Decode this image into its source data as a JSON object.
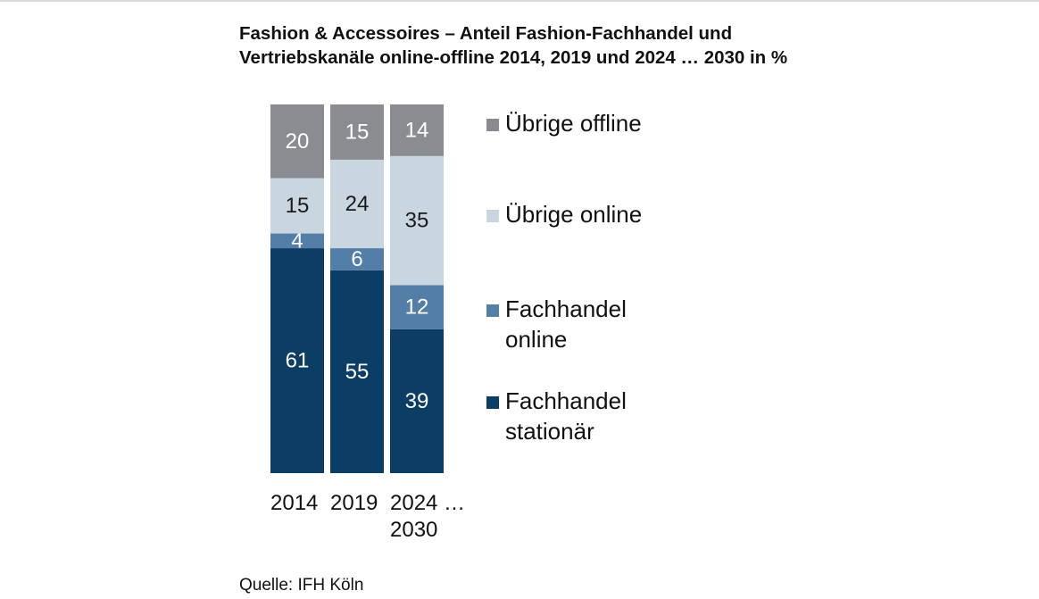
{
  "title_lines": [
    "Fashion & Accessoires – Anteil Fashion-Fachhandel und",
    "Vertriebskanäle online-offline 2014, 2019 und 2024 … 2030 in %"
  ],
  "source": "Quelle: IFH Köln",
  "chart_data": {
    "type": "bar",
    "stacked": true,
    "title": "Fashion & Accessoires – Anteil Fashion-Fachhandel und Vertriebskanäle online-offline 2014, 2019 und 2024 … 2030 in %",
    "categories": [
      [
        "2014"
      ],
      [
        "2019"
      ],
      [
        "2024 …",
        "2030"
      ]
    ],
    "ylim": [
      0,
      100
    ],
    "grid": false,
    "legend_position": "right",
    "series": [
      {
        "name": "Fachhandel stationär",
        "legend_lines": [
          "Fachhandel",
          "stationär"
        ],
        "color": "#0c3d65",
        "label_color": "#ffffff",
        "values": [
          61,
          55,
          39
        ]
      },
      {
        "name": "Fachhandel online",
        "legend_lines": [
          "Fachhandel",
          "online"
        ],
        "color": "#527ea8",
        "label_color": "#ffffff",
        "values": [
          4,
          6,
          12
        ]
      },
      {
        "name": "Übrige online",
        "legend_lines": [
          "Übrige online"
        ],
        "color": "#c9d5df",
        "label_color": "#1a1a1a",
        "values": [
          15,
          24,
          35
        ]
      },
      {
        "name": "Übrige offline",
        "legend_lines": [
          "Übrige offline"
        ],
        "color": "#8a8c92",
        "label_color": "#ffffff",
        "values": [
          20,
          15,
          14
        ]
      }
    ]
  }
}
